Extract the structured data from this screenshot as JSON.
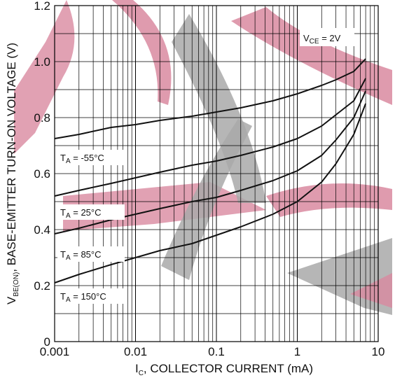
{
  "chart_data": {
    "type": "line",
    "x_scale": "log",
    "xlabel_main": "I",
    "xlabel_sub": "C",
    "xlabel_rest": ", COLLECTOR CURRENT (mA)",
    "ylabel_main": "V",
    "ylabel_sub": "BE(ON)",
    "ylabel_rest": ", BASE-EMITTER TURN-ON VOLTAGE (V)",
    "xlim": [
      0.001,
      10
    ],
    "ylim": [
      0,
      1.2
    ],
    "grid": true,
    "x_ticks": [
      {
        "value": 0.001,
        "label": "0.001"
      },
      {
        "value": 0.01,
        "label": "0.01"
      },
      {
        "value": 0.1,
        "label": "0.1"
      },
      {
        "value": 1,
        "label": "1"
      },
      {
        "value": 10,
        "label": "10"
      }
    ],
    "y_ticks": [
      {
        "value": 0,
        "label": "0"
      },
      {
        "value": 0.2,
        "label": "0.2"
      },
      {
        "value": 0.4,
        "label": "0.4"
      },
      {
        "value": 0.6,
        "label": "0.6"
      },
      {
        "value": 0.8,
        "label": "0.8"
      },
      {
        "value": 1.0,
        "label": "1.0"
      },
      {
        "value": 1.2,
        "label": "1.2"
      }
    ],
    "condition": {
      "main": "V",
      "sub": "CE",
      "rest": " = 2V"
    },
    "series": [
      {
        "name": "-55°C",
        "label": {
          "main": "T",
          "sub": "A",
          "rest": " = -55°C"
        },
        "label_at": {
          "x": 0.001,
          "y": 0.65
        },
        "points": [
          [
            0.001,
            0.725
          ],
          [
            0.002,
            0.74
          ],
          [
            0.005,
            0.765
          ],
          [
            0.01,
            0.775
          ],
          [
            0.02,
            0.79
          ],
          [
            0.05,
            0.805
          ],
          [
            0.1,
            0.82
          ],
          [
            0.2,
            0.835
          ],
          [
            0.5,
            0.86
          ],
          [
            1,
            0.885
          ],
          [
            2,
            0.915
          ],
          [
            3,
            0.935
          ],
          [
            5,
            0.965
          ],
          [
            7,
            1.01
          ]
        ]
      },
      {
        "name": "25°C",
        "label": {
          "main": "T",
          "sub": "A",
          "rest": " = 25°C"
        },
        "label_at": {
          "x": 0.001,
          "y": 0.455
        },
        "points": [
          [
            0.001,
            0.52
          ],
          [
            0.002,
            0.54
          ],
          [
            0.005,
            0.565
          ],
          [
            0.01,
            0.585
          ],
          [
            0.02,
            0.605
          ],
          [
            0.05,
            0.63
          ],
          [
            0.1,
            0.645
          ],
          [
            0.2,
            0.665
          ],
          [
            0.5,
            0.695
          ],
          [
            1,
            0.725
          ],
          [
            2,
            0.77
          ],
          [
            3,
            0.81
          ],
          [
            5,
            0.86
          ],
          [
            7,
            0.94
          ]
        ]
      },
      {
        "name": "85°C",
        "label": {
          "main": "T",
          "sub": "A",
          "rest": " = 85°C"
        },
        "label_at": {
          "x": 0.001,
          "y": 0.305
        },
        "points": [
          [
            0.001,
            0.385
          ],
          [
            0.002,
            0.405
          ],
          [
            0.005,
            0.435
          ],
          [
            0.01,
            0.455
          ],
          [
            0.02,
            0.475
          ],
          [
            0.05,
            0.5
          ],
          [
            0.1,
            0.515
          ],
          [
            0.2,
            0.54
          ],
          [
            0.5,
            0.575
          ],
          [
            1,
            0.61
          ],
          [
            2,
            0.665
          ],
          [
            3,
            0.72
          ],
          [
            5,
            0.8
          ],
          [
            7,
            0.895
          ]
        ]
      },
      {
        "name": "150°C",
        "label": {
          "main": "T",
          "sub": "A",
          "rest": " = 150°C"
        },
        "label_at": {
          "x": 0.001,
          "y": 0.155
        },
        "points": [
          [
            0.001,
            0.21
          ],
          [
            0.002,
            0.24
          ],
          [
            0.005,
            0.275
          ],
          [
            0.01,
            0.3
          ],
          [
            0.02,
            0.325
          ],
          [
            0.05,
            0.35
          ],
          [
            0.1,
            0.38
          ],
          [
            0.2,
            0.41
          ],
          [
            0.5,
            0.455
          ],
          [
            1,
            0.5
          ],
          [
            2,
            0.57
          ],
          [
            3,
            0.635
          ],
          [
            5,
            0.74
          ],
          [
            7,
            0.85
          ]
        ]
      }
    ],
    "line_color": "#111111",
    "grid_color": "#000000",
    "watermark_colors": {
      "pink": "#d98aa0",
      "gray": "#a9a9a9"
    }
  }
}
